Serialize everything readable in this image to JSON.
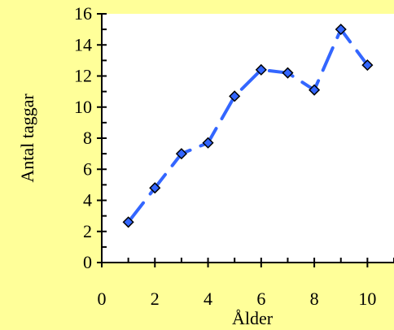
{
  "chart_data": {
    "type": "line",
    "xlabel": "Ålder",
    "ylabel": "Antal taggar",
    "xlim": [
      0,
      11
    ],
    "ylim": [
      0,
      16
    ],
    "xticks": [
      0,
      2,
      4,
      6,
      8,
      10
    ],
    "yticks": [
      0,
      2,
      4,
      6,
      8,
      10,
      12,
      14,
      16
    ],
    "x_minor_step": 1,
    "y_minor_step": 1,
    "grid": false,
    "colors": {
      "background": "#ffff99",
      "plot_area": "#ffffff",
      "line": "#3366ff",
      "marker": "#3366ff",
      "marker_edge": "#000000"
    },
    "series": [
      {
        "x": [
          1,
          2,
          3,
          4,
          5,
          6,
          7,
          8,
          9,
          10
        ],
        "y": [
          2.6,
          4.8,
          7.0,
          7.7,
          10.7,
          12.4,
          12.2,
          11.1,
          15.0,
          12.7
        ]
      }
    ]
  }
}
